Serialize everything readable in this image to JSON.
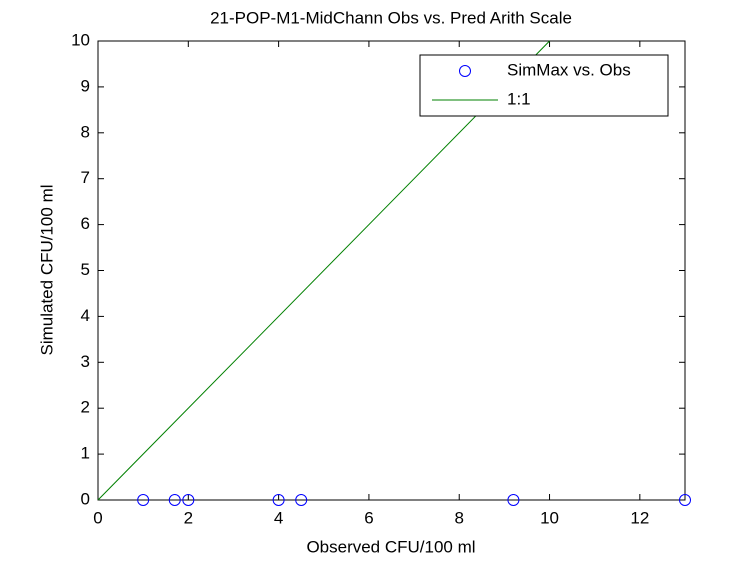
{
  "chart_data": {
    "type": "scatter",
    "title": "21-POP-M1-MidChann Obs vs. Pred Arith Scale",
    "x_label": "Observed CFU/100 ml",
    "y_label": "Simulated CFU/100 ml",
    "xlim": [
      0,
      13
    ],
    "xticks": [
      0,
      2,
      4,
      6,
      8,
      10,
      12
    ],
    "ylim": [
      0,
      10
    ],
    "yticks": [
      0,
      1,
      2,
      3,
      4,
      5,
      6,
      7,
      8,
      9,
      10
    ],
    "legend": "northeast",
    "series": [
      {
        "name": "SimMax vs. Obs",
        "type": "scatter",
        "color": "#0000ff",
        "x": [
          1,
          1.7,
          2,
          4,
          4.5,
          9.2,
          13
        ],
        "values": [
          0,
          0,
          0,
          0,
          0,
          0,
          0
        ]
      },
      {
        "name": "1:1",
        "type": "line",
        "color": "#008000",
        "x": [
          0,
          10
        ],
        "values": [
          0,
          10
        ]
      }
    ]
  }
}
